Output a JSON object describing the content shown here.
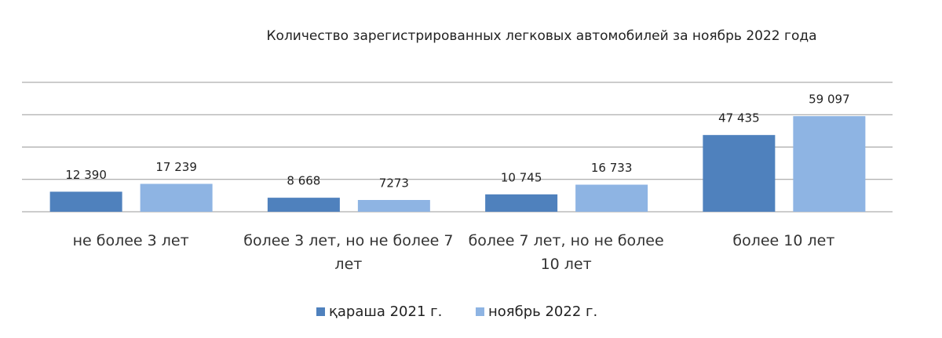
{
  "chart_data": {
    "type": "bar",
    "title": "Количество зарегистрированных легковых автомобилей за ноябрь 2022 года",
    "categories": [
      "не более 3 лет",
      "более 3 лет, но не более 7 лет",
      "более 7 лет, но не более 10 лет",
      "более 10 лет"
    ],
    "series": [
      {
        "name": "қараша 2021 г.",
        "color": "#4f81bd",
        "values": [
          12390,
          8668,
          10745,
          47435
        ],
        "value_labels": [
          "12 390",
          "8 668",
          "10 745",
          "47 435"
        ]
      },
      {
        "name": "ноябрь 2022 г.",
        "color": "#8eb4e3",
        "values": [
          17239,
          7273,
          16733,
          59097
        ],
        "value_labels": [
          "17 239",
          "7273",
          "16 733",
          "59 097"
        ]
      }
    ],
    "ylim": [
      0,
      80000
    ],
    "yticks": [
      0,
      20000,
      40000,
      60000,
      80000
    ],
    "grid": true
  }
}
